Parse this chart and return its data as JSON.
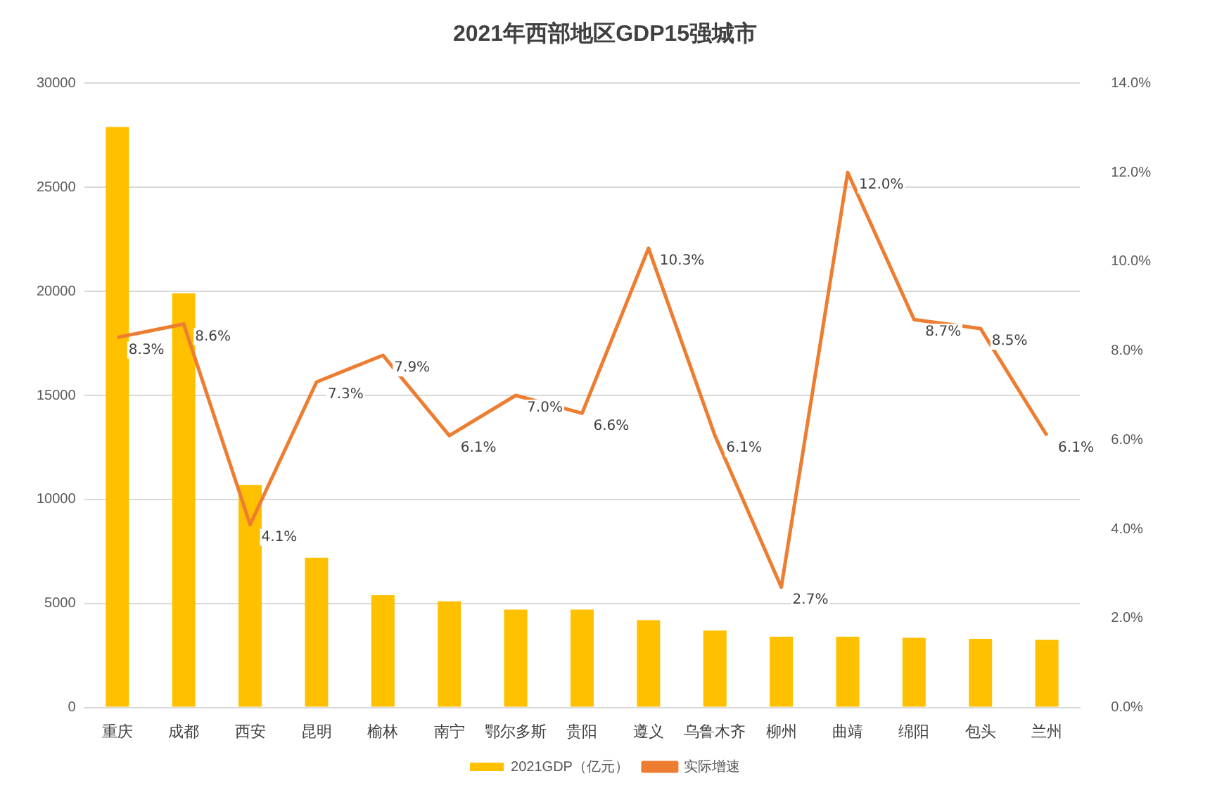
{
  "chart_data": {
    "type": "bar",
    "title": "2021年西部地区GDP15强城市",
    "categories": [
      "重庆",
      "成都",
      "西安",
      "昆明",
      "榆林",
      "南宁",
      "鄂尔多斯",
      "贵阳",
      "遵义",
      "乌鲁木齐",
      "柳州",
      "曲靖",
      "绵阳",
      "包头",
      "兰州"
    ],
    "series": [
      {
        "name": "2021GDP（亿元）",
        "color": "#ffc000",
        "values": [
          27900,
          19900,
          10700,
          7200,
          5400,
          5100,
          4700,
          4700,
          4200,
          3700,
          3400,
          3400,
          3350,
          3300,
          3250
        ]
      },
      {
        "name": "实际增速",
        "type": "line",
        "axis": "y2",
        "color": "#ed7d31",
        "values": [
          8.3,
          8.6,
          4.1,
          7.3,
          7.9,
          6.1,
          7.0,
          6.6,
          10.3,
          6.1,
          2.7,
          12.0,
          8.7,
          8.5,
          6.1
        ],
        "value_labels": [
          "8.3%",
          "8.6%",
          "4.1%",
          "7.3%",
          "7.9%",
          "6.1%",
          "7.0%",
          "6.6%",
          "10.3%",
          "6.1%",
          "2.7%",
          "12.0%",
          "8.7%",
          "8.5%",
          "6.1%"
        ]
      }
    ],
    "ylim": [
      0,
      30000
    ],
    "yticks": [
      0,
      5000,
      10000,
      15000,
      20000,
      25000,
      30000
    ],
    "y2lim": [
      0,
      14
    ],
    "y2ticks": [
      {
        "value": 0,
        "label": "0.0%"
      },
      {
        "value": 2,
        "label": "2.0%"
      },
      {
        "value": 4,
        "label": "4.0%"
      },
      {
        "value": 6,
        "label": "6.0%"
      },
      {
        "value": 8,
        "label": "8.0%"
      },
      {
        "value": 10,
        "label": "10.0%"
      },
      {
        "value": 12,
        "label": "12.0%"
      },
      {
        "value": 14,
        "label": "14.0%"
      }
    ],
    "grid": "y",
    "legend": "bottom",
    "marker": "none",
    "line_style": "solid"
  }
}
